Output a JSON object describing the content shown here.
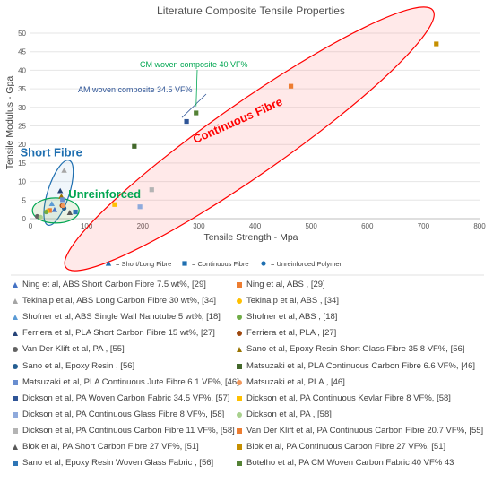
{
  "chart_data": {
    "type": "scatter",
    "title": "Literature Composite Tensile Properties",
    "xlabel": "Tensile Strength - Mpa",
    "ylabel": "Tensile Modulus - Gpa",
    "xlim": [
      0,
      800
    ],
    "ylim": [
      0,
      50
    ],
    "xticks": [
      "0",
      "100",
      "200",
      "300",
      "400",
      "500",
      "600",
      "700",
      "800"
    ],
    "yticks": [
      "0",
      "5",
      "10",
      "15",
      "20",
      "25",
      "30",
      "35",
      "40",
      "45",
      "50"
    ],
    "grid": "horizontal",
    "series": [
      {
        "name": "Ning et al, ABS Short Carbon Fibre  7.5 wt%, [29]",
        "marker": "triangle",
        "color": "#4472c4",
        "points": [
          [
            43,
            2.4
          ]
        ]
      },
      {
        "name": "Ning et al, ABS , [29]",
        "marker": "square",
        "color": "#ed7d31",
        "points": [
          [
            34,
            2.2
          ]
        ]
      },
      {
        "name": "Tekinalp et al, ABS Long Carbon Fibre 30 wt%, [34]",
        "marker": "triangle",
        "color": "#a5a5a5",
        "points": [
          [
            60,
            13
          ]
        ]
      },
      {
        "name": "Tekinalp et al, ABS , [34]",
        "marker": "circle",
        "color": "#ffc000",
        "points": [
          [
            30,
            2
          ]
        ]
      },
      {
        "name": "Shofner et al, ABS Single Wall Nanotube 5 wt%, [18]",
        "marker": "triangle",
        "color": "#5b9bd5",
        "points": [
          [
            38,
            4
          ]
        ]
      },
      {
        "name": "Shofner et al, ABS , [18]",
        "marker": "circle",
        "color": "#70ad47",
        "points": [
          [
            28,
            1.8
          ]
        ]
      },
      {
        "name": "Ferriera et al, PLA Short Carbon Fibre 15 wt%, [27]",
        "marker": "triangle",
        "color": "#264478",
        "points": [
          [
            53,
            7.5
          ]
        ]
      },
      {
        "name": "Ferriera et al, PLA , [27]",
        "marker": "circle",
        "color": "#9e480e",
        "points": [
          [
            56,
            3.5
          ]
        ]
      },
      {
        "name": "Van Der Klift et al, PA , [55]",
        "marker": "circle",
        "color": "#636363",
        "points": [
          [
            12,
            0.6
          ]
        ]
      },
      {
        "name": "Sano et al, Epoxy Resin Short Glass Fibre 35.8 VF%, [56]",
        "marker": "triangle",
        "color": "#997300",
        "points": [
          [
            55,
            6
          ]
        ]
      },
      {
        "name": "Sano et al, Epoxy Resin , [56]",
        "marker": "circle",
        "color": "#255e91",
        "points": [
          [
            60,
            2.8
          ]
        ]
      },
      {
        "name": "Matsuzaki et al, PLA Continuous Carbon Fibre 6.6 VF%, [46]",
        "marker": "square",
        "color": "#43682b",
        "points": [
          [
            185,
            19.5
          ]
        ]
      },
      {
        "name": "Matsuzaki et al, PLA Continuous Jute Fibre 6.1 VF%, [46]",
        "marker": "square",
        "color": "#698ed0",
        "points": [
          [
            57,
            5.1
          ]
        ]
      },
      {
        "name": "Matsuzaki et al, PLA , [46]",
        "marker": "circle",
        "color": "#f1975a",
        "points": [
          [
            58,
            3.5
          ]
        ]
      },
      {
        "name": "Dickson et al, PA  Woven Carbon Fabric 34.5 VF%, [57]",
        "marker": "square",
        "color": "#2f5597",
        "points": [
          [
            278,
            26.2
          ]
        ]
      },
      {
        "name": "Dickson et al, PA Continuous Kevlar Fibre 8 VF%, [58]",
        "marker": "square",
        "color": "#ffc000",
        "points": [
          [
            150,
            3.8
          ]
        ]
      },
      {
        "name": "Dickson et al, PA Continuous Glass Fibre 8 VF%, [58]",
        "marker": "square",
        "color": "#8faadc",
        "points": [
          [
            195,
            3.2
          ]
        ]
      },
      {
        "name": "Dickson et al, PA , [58]",
        "marker": "circle",
        "color": "#a9d18e",
        "points": [
          [
            18,
            0.4
          ]
        ]
      },
      {
        "name": "Dickson et al, PA Continuous Carbon Fibre 11 VF%, [58]",
        "marker": "square",
        "color": "#b4b4b4",
        "points": [
          [
            216,
            7.8
          ]
        ]
      },
      {
        "name": "Van Der Klift et al, PA Continuous Carbon Fibre 20.7 VF%, [55]",
        "marker": "square",
        "color": "#ed7d31",
        "points": [
          [
            464,
            35.7
          ]
        ]
      },
      {
        "name": "Blok et al, PA Short Carbon Fibre 27 VF%, [51]",
        "marker": "triangle",
        "color": "#595959",
        "points": [
          [
            70,
            1.6
          ]
        ]
      },
      {
        "name": "Blok et al, PA Continuous Carbon Fibre 27 VF%, [51]",
        "marker": "square",
        "color": "#c58f00",
        "points": [
          [
            723,
            47.1
          ]
        ]
      },
      {
        "name": "Sano et al, Epoxy Resin Woven Glass Fabric , [56]",
        "marker": "square",
        "color": "#2e75b6",
        "points": [
          [
            80,
            1.8
          ]
        ]
      },
      {
        "name": "Botelho et al, PA CM Woven Carbon Fabric 40 VF% 43",
        "marker": "square",
        "color": "#548235",
        "points": [
          [
            295,
            28.5
          ]
        ]
      }
    ],
    "regions": [
      {
        "label": "Short Fibre",
        "color": "#1f6fb0"
      },
      {
        "label": "Unreinforced",
        "color": "#00a651"
      },
      {
        "label": "Continuous Fibre",
        "color": "#ff0000"
      }
    ],
    "annotations": [
      {
        "text": "AM woven composite 34.5 VF%",
        "color": "#2f5597",
        "points_to": [
          273,
          27
        ]
      },
      {
        "text": "CM woven composite 40 VF%",
        "color": "#00a651",
        "points_to": [
          295,
          29.8
        ]
      }
    ],
    "shape_key": [
      {
        "shape": "triangle",
        "text": "= Short/Long Fibre"
      },
      {
        "shape": "square",
        "text": "= Continuous Fibre"
      },
      {
        "shape": "circle",
        "text": "= Unreinforced Polymer"
      }
    ],
    "shape_key_color": "#1f6fb0",
    "legend_position": "bottom"
  }
}
